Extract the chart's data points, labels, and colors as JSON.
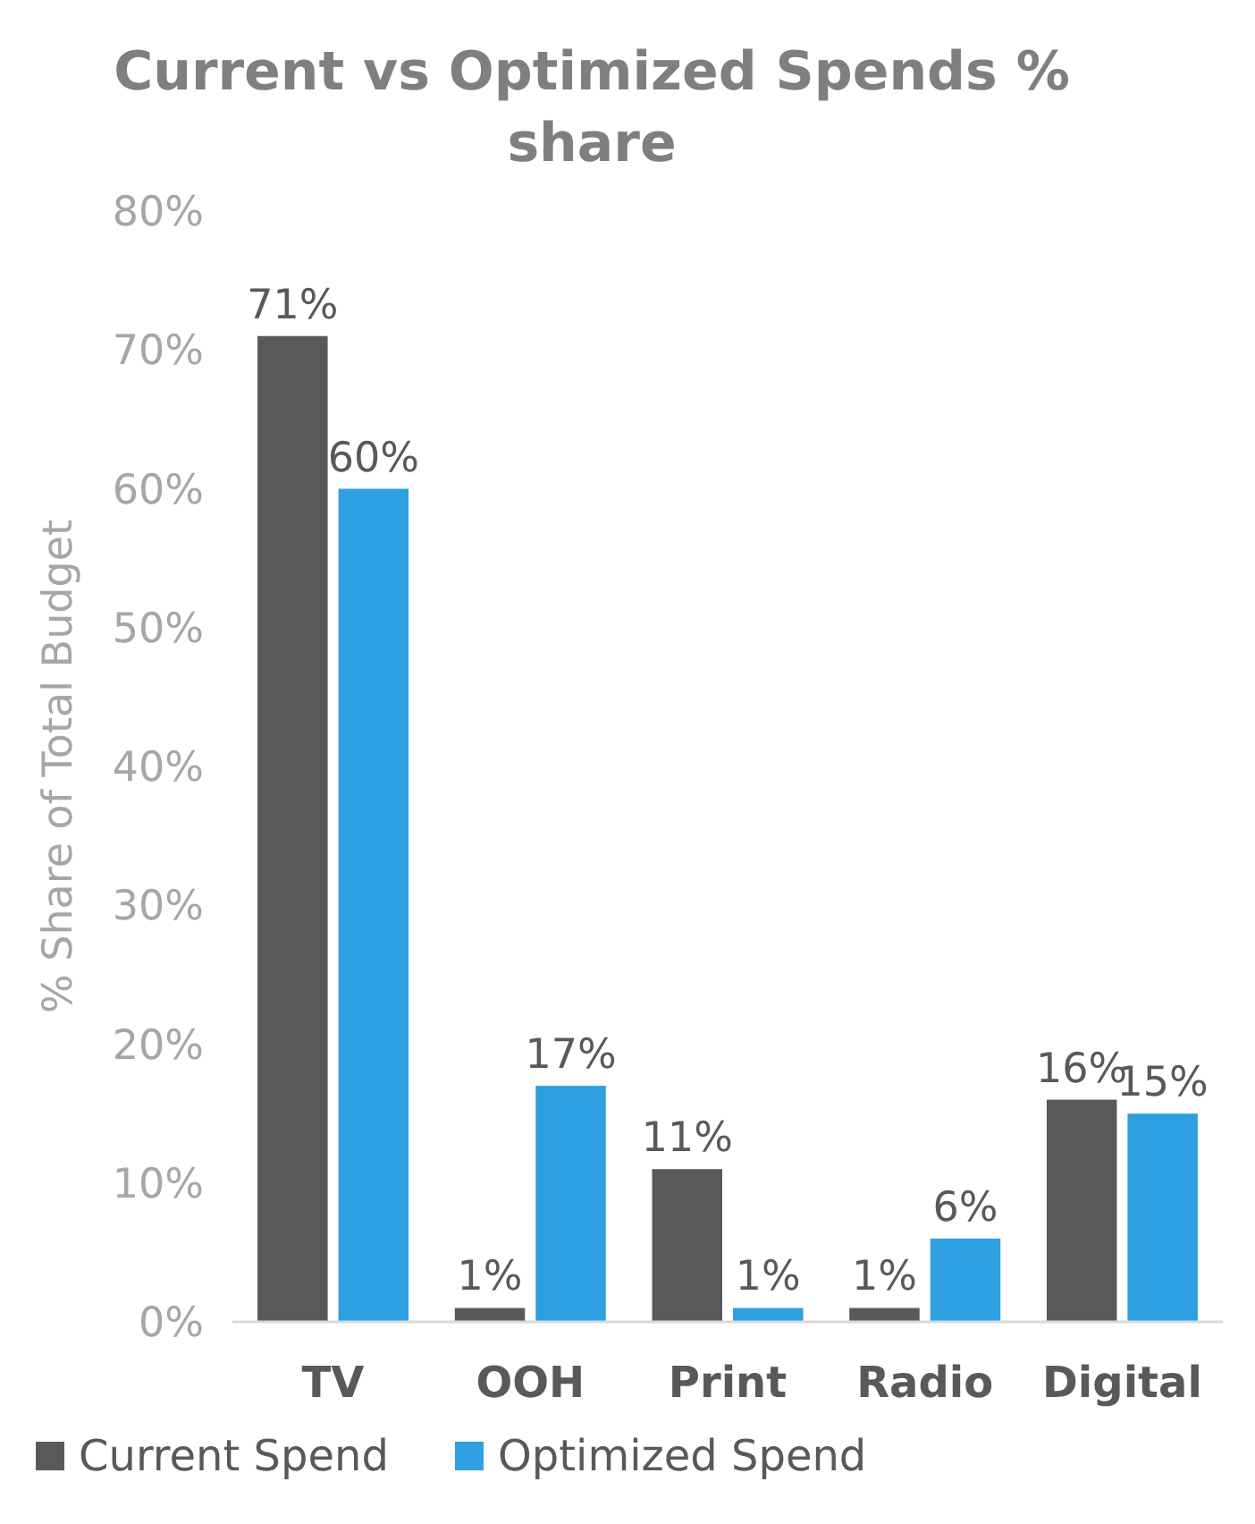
{
  "chart_data": {
    "type": "bar",
    "title": "Current vs Optimized Spends % share",
    "ylabel": "% Share of Total Budget",
    "categories": [
      "TV",
      "OOH",
      "Print",
      "Radio",
      "Digital"
    ],
    "series": [
      {
        "name": "Current Spend",
        "color": "#595959",
        "values": [
          71,
          1,
          11,
          1,
          16
        ],
        "value_labels": [
          "71%",
          "1%",
          "11%",
          "1%",
          "16%"
        ]
      },
      {
        "name": "Optimized Spend",
        "color": "#2e9fe0",
        "values": [
          60,
          17,
          1,
          6,
          15
        ],
        "value_labels": [
          "60%",
          "17%",
          "1%",
          "6%",
          "15%"
        ]
      }
    ],
    "ylim": [
      0,
      80
    ],
    "yticks": [
      {
        "value": 0,
        "label": "0%"
      },
      {
        "value": 10,
        "label": "10%"
      },
      {
        "value": 20,
        "label": "20%"
      },
      {
        "value": 30,
        "label": "30%"
      },
      {
        "value": 40,
        "label": "40%"
      },
      {
        "value": 50,
        "label": "50%"
      },
      {
        "value": 60,
        "label": "60%"
      },
      {
        "value": 70,
        "label": "70%"
      },
      {
        "value": 80,
        "label": "80%"
      }
    ],
    "grid": false,
    "legend": "bottom"
  }
}
